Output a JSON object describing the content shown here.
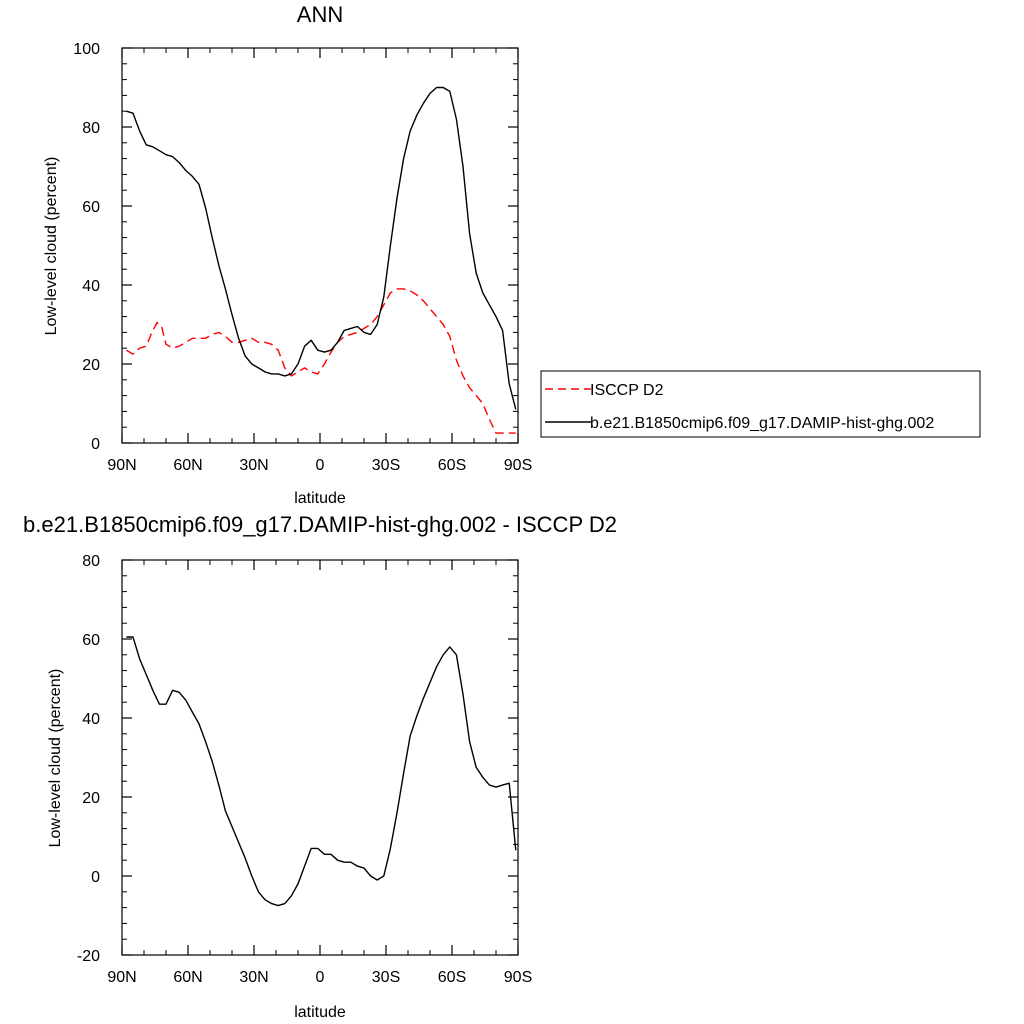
{
  "chart_data": [
    {
      "type": "line",
      "title": "ANN",
      "xlabel": "latitude",
      "ylabel": "Low-level cloud (percent)",
      "xlim": [
        90,
        -90
      ],
      "ylim": [
        0,
        100
      ],
      "xticks": [
        {
          "value": 90,
          "label": "90N"
        },
        {
          "value": 60,
          "label": "60N"
        },
        {
          "value": 30,
          "label": "30N"
        },
        {
          "value": 0,
          "label": "0"
        },
        {
          "value": -30,
          "label": "30S"
        },
        {
          "value": -60,
          "label": "60S"
        },
        {
          "value": -90,
          "label": "90S"
        }
      ],
      "yticks": [
        0,
        20,
        40,
        60,
        80,
        100
      ],
      "legend_position": "right",
      "series": [
        {
          "name": "ISCCP D2",
          "color": "#ff0000",
          "dash": "dashed",
          "x": [
            88,
            85,
            82,
            79,
            76,
            74,
            72,
            70,
            67,
            64,
            61,
            58,
            55,
            52,
            49,
            46,
            43,
            40,
            37,
            34,
            31,
            28,
            25,
            22,
            19,
            16,
            13,
            10,
            7,
            4,
            1,
            -2,
            -5,
            -8,
            -11,
            -14,
            -17,
            -20,
            -23,
            -26,
            -29,
            -32,
            -35,
            -38,
            -41,
            -44,
            -47,
            -50,
            -53,
            -56,
            -59,
            -62,
            -65,
            -68,
            -71,
            -74,
            -77,
            -80,
            -83,
            -86,
            -89
          ],
          "y": [
            23.5,
            22.5,
            24,
            24.5,
            28.5,
            30.5,
            29.5,
            25,
            24,
            24.5,
            25.5,
            26.5,
            26.5,
            26.5,
            27.5,
            28,
            27,
            25.5,
            25.5,
            26,
            26.5,
            25.5,
            25.5,
            25,
            23.5,
            19,
            17,
            18,
            19,
            18,
            17.5,
            20,
            23,
            25.5,
            27,
            27.5,
            28,
            29,
            30,
            32,
            35,
            38,
            39,
            39,
            38.5,
            37.5,
            36,
            34,
            32,
            30,
            27,
            21,
            17,
            14,
            12,
            10,
            6,
            2.5,
            2.5,
            2.5,
            2.5
          ]
        },
        {
          "name": "b.e21.B1850cmip6.f09_g17.DAMIP-hist-ghg.002",
          "color": "#000000",
          "dash": "solid",
          "x": [
            88,
            85,
            82,
            79,
            76,
            73,
            70,
            67,
            64,
            61,
            58,
            55,
            52,
            49,
            46,
            43,
            40,
            37,
            34,
            31,
            28,
            25,
            22,
            19,
            16,
            13,
            10,
            7,
            4,
            1,
            -2,
            -5,
            -8,
            -11,
            -14,
            -17,
            -20,
            -23,
            -26,
            -29,
            -32,
            -35,
            -38,
            -41,
            -44,
            -47,
            -50,
            -53,
            -56,
            -59,
            -62,
            -65,
            -68,
            -71,
            -74,
            -77,
            -80,
            -83,
            -86,
            -89
          ],
          "y": [
            84,
            83.5,
            79,
            75.5,
            75,
            74,
            73,
            72.5,
            71,
            69,
            67.5,
            65.5,
            59.5,
            52,
            45,
            39,
            32.5,
            26.5,
            22,
            20,
            19,
            18,
            17.5,
            17.5,
            17,
            17.5,
            20,
            24.5,
            26,
            23.5,
            23,
            23.5,
            25.5,
            28.5,
            29,
            29.5,
            28,
            27.5,
            30,
            37,
            50,
            62,
            72,
            79,
            83,
            86,
            88.5,
            90,
            90,
            89,
            82,
            70,
            53,
            43,
            38,
            35,
            32,
            28.5,
            15,
            8.5
          ]
        }
      ]
    },
    {
      "type": "line",
      "title": "b.e21.B1850cmip6.f09_g17.DAMIP-hist-ghg.002 - ISCCP D2",
      "xlabel": "latitude",
      "ylabel": "Low-level cloud (percent)",
      "xlim": [
        90,
        -90
      ],
      "ylim": [
        -20,
        80
      ],
      "xticks": [
        {
          "value": 90,
          "label": "90N"
        },
        {
          "value": 60,
          "label": "60N"
        },
        {
          "value": 30,
          "label": "30N"
        },
        {
          "value": 0,
          "label": "0"
        },
        {
          "value": -30,
          "label": "30S"
        },
        {
          "value": -60,
          "label": "60S"
        },
        {
          "value": -90,
          "label": "90S"
        }
      ],
      "yticks": [
        -20,
        0,
        20,
        40,
        60,
        80
      ],
      "series": [
        {
          "color": "#000000",
          "dash": "solid",
          "x": [
            88,
            85,
            82,
            79,
            76,
            73,
            70,
            67,
            64,
            61,
            58,
            55,
            52,
            49,
            46,
            43,
            40,
            37,
            34,
            31,
            28,
            25,
            22,
            19,
            16,
            13,
            10,
            7,
            4,
            1,
            -2,
            -5,
            -8,
            -11,
            -14,
            -17,
            -20,
            -23,
            -26,
            -29,
            -32,
            -35,
            -38,
            -41,
            -44,
            -47,
            -50,
            -53,
            -56,
            -59,
            -62,
            -65,
            -68,
            -71,
            -74,
            -77,
            -80,
            -83,
            -86,
            -89
          ],
          "y": [
            60.5,
            60.5,
            55,
            51,
            47,
            43.5,
            43.5,
            47,
            46.5,
            44.5,
            41.5,
            38.5,
            34,
            29,
            23,
            16.5,
            12.5,
            8.5,
            4.5,
            0,
            -4,
            -6,
            -7,
            -7.5,
            -7,
            -5,
            -2,
            2.5,
            7,
            7,
            5.5,
            5.5,
            4,
            3.5,
            3.5,
            2.5,
            2,
            0,
            -1,
            0,
            7,
            16,
            26,
            35.5,
            40.5,
            45,
            49,
            53,
            56,
            58,
            56,
            46,
            34,
            27.5,
            25,
            23,
            22.5,
            23,
            23.5,
            6.5
          ]
        }
      ]
    }
  ]
}
